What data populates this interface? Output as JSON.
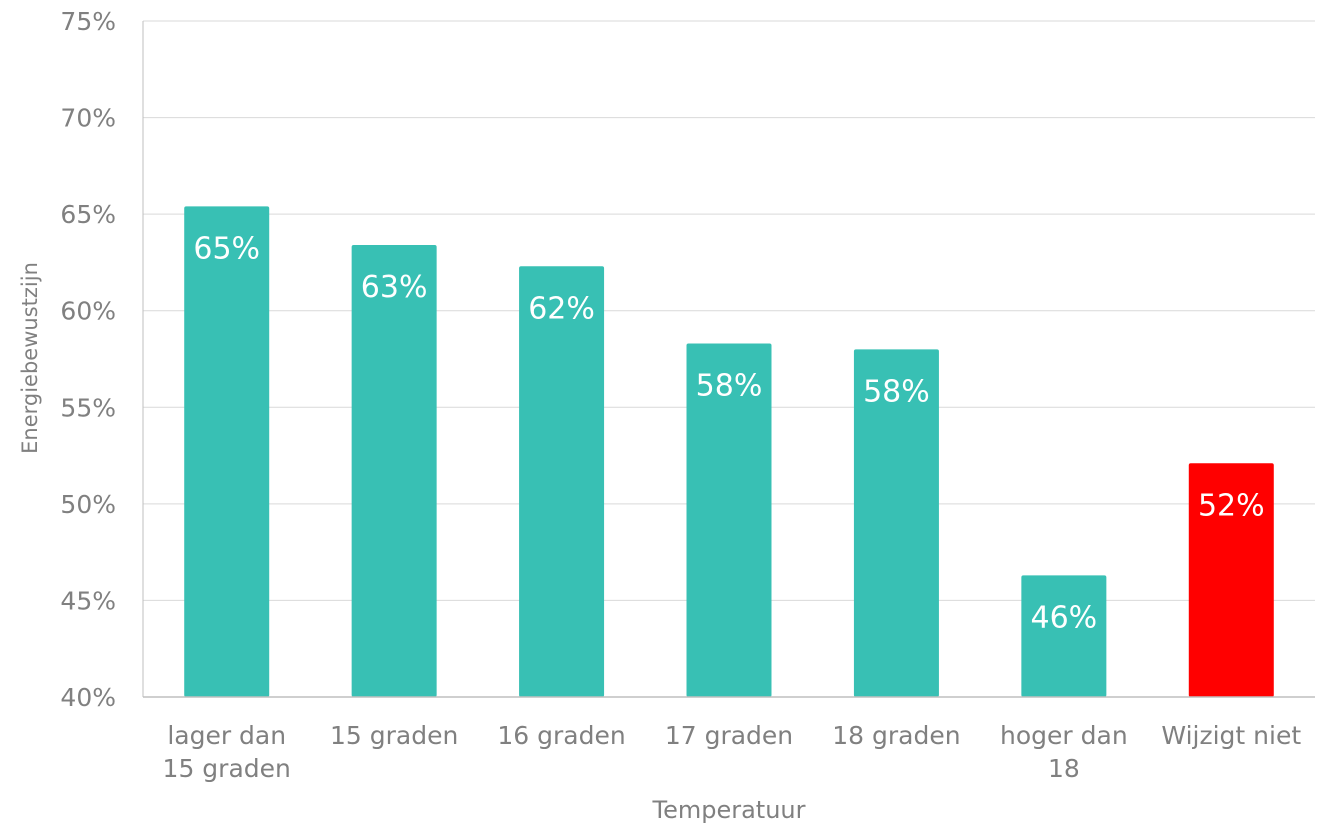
{
  "chart_data": {
    "type": "bar",
    "title": "",
    "xlabel": "Temperatuur",
    "ylabel": "Energiebewustzijn",
    "ylim": [
      40,
      75
    ],
    "yticks": [
      40,
      45,
      50,
      55,
      60,
      65,
      70,
      75
    ],
    "ytick_labels": [
      "40%",
      "45%",
      "50%",
      "55%",
      "60%",
      "65%",
      "70%",
      "75%"
    ],
    "grid": true,
    "legend": "none",
    "categories": [
      [
        "lager dan",
        "15 graden"
      ],
      [
        "15 graden"
      ],
      [
        "16 graden"
      ],
      [
        "17 graden"
      ],
      [
        "18 graden"
      ],
      [
        "hoger dan",
        "18"
      ],
      [
        "Wijzigt niet"
      ]
    ],
    "values": [
      65.4,
      63.4,
      62.3,
      58.3,
      58.0,
      46.3,
      52.1
    ],
    "data_labels": [
      "65%",
      "63%",
      "62%",
      "58%",
      "58%",
      "46%",
      "52%"
    ],
    "bar_colors": [
      "#38C0B4",
      "#38C0B4",
      "#38C0B4",
      "#38C0B4",
      "#38C0B4",
      "#38C0B4",
      "#FF0000"
    ]
  },
  "colors": {
    "text": "#808080",
    "grid": "#D9D9D9",
    "axis": "#BFBFBF",
    "data_label": "#FFFFFF"
  }
}
